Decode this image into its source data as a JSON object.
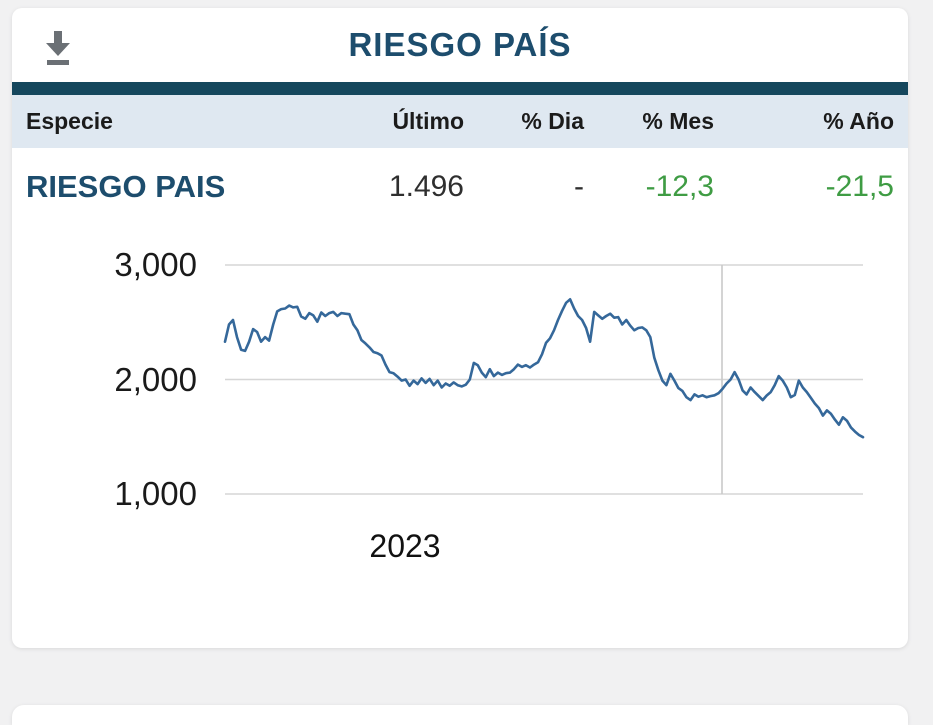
{
  "page": {
    "background": "#f1f1f2"
  },
  "widget": {
    "title": "RIESGO PAÍS",
    "title_color": "#1d4d6d",
    "accent_color": "#15475d",
    "download_icon": "download-icon",
    "download_icon_color": "#6b7075"
  },
  "table": {
    "header_bg": "#dfe8f1",
    "columns": [
      "Especie",
      "Último",
      "% Dia",
      "% Mes",
      "% Año"
    ],
    "positive_color": "#3f9c44",
    "rows": [
      {
        "especie": "RIESGO PAIS",
        "ultimo": "1.496",
        "dia": "-",
        "mes": "-12,3",
        "ano": "-21,5"
      }
    ]
  },
  "chart_data": {
    "type": "line",
    "title": "",
    "xlabel": "",
    "ylabel": "",
    "x_tick_labels": [
      "2023"
    ],
    "x_label_frac": 0.28,
    "vline_frac": 0.779,
    "y_ticks": [
      1000,
      2000,
      3000
    ],
    "y_tick_labels": [
      "1,000",
      "2,000",
      "3,000"
    ],
    "ylim": [
      1000,
      3000
    ],
    "grid": "horizontal gridlines at each y tick, one unlabeled vertical gridline",
    "legend": "none",
    "last_value": 1496,
    "series": [
      {
        "name": "RIESGO PAIS",
        "color": "#35689a",
        "values": [
          2330,
          2480,
          2520,
          2370,
          2260,
          2250,
          2330,
          2440,
          2415,
          2330,
          2370,
          2340,
          2480,
          2595,
          2615,
          2620,
          2645,
          2630,
          2635,
          2550,
          2530,
          2580,
          2560,
          2505,
          2585,
          2555,
          2580,
          2590,
          2555,
          2580,
          2575,
          2570,
          2480,
          2430,
          2345,
          2315,
          2280,
          2240,
          2230,
          2210,
          2130,
          2065,
          2055,
          2025,
          1990,
          2000,
          1945,
          1990,
          1960,
          2010,
          1970,
          2005,
          1950,
          1990,
          1930,
          1965,
          1945,
          1975,
          1950,
          1940,
          1955,
          2000,
          2145,
          2125,
          2060,
          2020,
          2090,
          2030,
          2060,
          2040,
          2055,
          2060,
          2090,
          2130,
          2110,
          2125,
          2105,
          2130,
          2150,
          2220,
          2320,
          2360,
          2430,
          2520,
          2600,
          2670,
          2700,
          2620,
          2555,
          2520,
          2450,
          2330,
          2590,
          2560,
          2530,
          2555,
          2575,
          2540,
          2545,
          2480,
          2520,
          2470,
          2430,
          2450,
          2455,
          2430,
          2370,
          2190,
          2080,
          1990,
          1950,
          2050,
          1990,
          1925,
          1900,
          1845,
          1820,
          1870,
          1850,
          1862,
          1845,
          1855,
          1862,
          1880,
          1920,
          1965,
          2000,
          2065,
          2000,
          1905,
          1870,
          1930,
          1890,
          1855,
          1820,
          1860,
          1890,
          1950,
          2030,
          1990,
          1930,
          1845,
          1865,
          1990,
          1930,
          1890,
          1840,
          1790,
          1750,
          1685,
          1730,
          1700,
          1650,
          1605,
          1670,
          1640,
          1580,
          1545,
          1515,
          1496
        ]
      }
    ]
  }
}
